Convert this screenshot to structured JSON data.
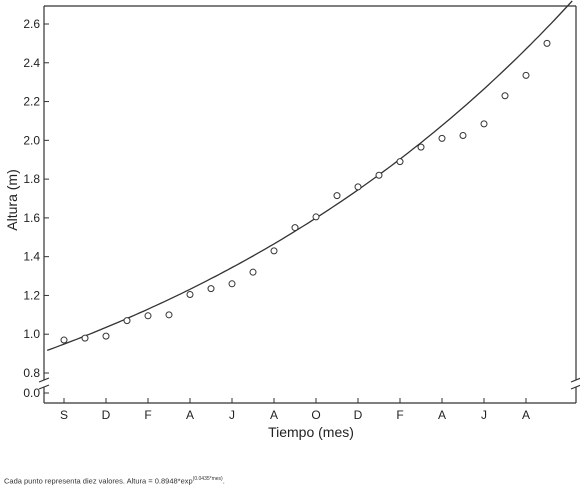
{
  "chart_data": {
    "type": "scatter",
    "xlabel": "Tiempo (mes)",
    "ylabel": "Altura (m)",
    "categories": [
      "S",
      "D",
      "F",
      "A",
      "J",
      "A",
      "O",
      "D",
      "F",
      "A",
      "J",
      "A"
    ],
    "y_ticks": [
      "0.0",
      "0.8",
      "1.0",
      "1.2",
      "1.4",
      "1.6",
      "1.8",
      "2.0",
      "2.2",
      "2.4",
      "2.6"
    ],
    "ylim": [
      0.8,
      2.65
    ],
    "y_axis_break": true,
    "xlim": [
      0,
      24.6
    ],
    "grid": false,
    "series": [
      {
        "marker": "open-circle",
        "x": [
          0,
          1,
          2,
          3,
          4,
          5,
          6,
          7,
          8,
          9,
          10,
          11,
          12,
          13,
          14,
          15,
          16,
          17,
          18,
          19,
          20,
          21,
          22,
          23
        ],
        "y": [
          0.97,
          0.98,
          0.99,
          1.07,
          1.095,
          1.1,
          1.205,
          1.235,
          1.26,
          1.32,
          1.43,
          1.55,
          1.605,
          1.715,
          1.76,
          1.82,
          1.89,
          1.965,
          2.01,
          2.025,
          2.085,
          2.23,
          2.335,
          2.5
        ]
      }
    ],
    "fit": {
      "a": 0.8948,
      "b": 0.0435
    }
  },
  "caption": {
    "text": "Cada punto representa diez valores. Altura = 0.8948*exp",
    "exponent": "(0.0435*mes)",
    "suffix": "."
  }
}
